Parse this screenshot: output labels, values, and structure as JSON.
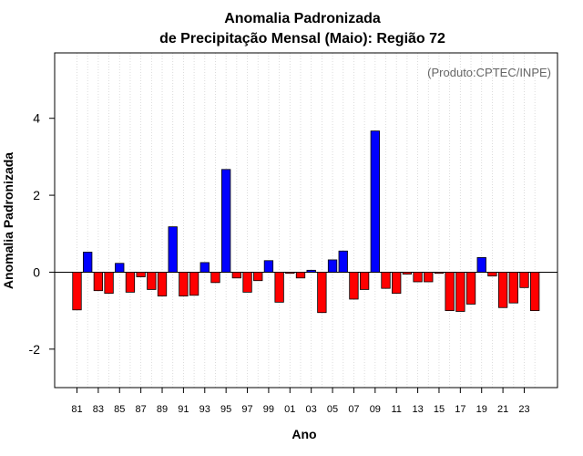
{
  "chart_data": {
    "type": "bar",
    "title": [
      "Anomalia Padronizada",
      "de Precipitação Mensal (Maio): Região 72"
    ],
    "xlabel": "Ano",
    "ylabel": "Anomalia Padronizada",
    "annotation": "(Produto:CPTEC/INPE)",
    "ylim": [
      -3.0,
      5.7
    ],
    "yticks": [
      -2,
      0,
      2,
      4
    ],
    "categories": [
      "81",
      "82",
      "83",
      "84",
      "85",
      "86",
      "87",
      "88",
      "89",
      "90",
      "91",
      "92",
      "93",
      "94",
      "95",
      "96",
      "97",
      "98",
      "99",
      "00",
      "01",
      "02",
      "03",
      "04",
      "05",
      "06",
      "07",
      "08",
      "09",
      "10",
      "11",
      "12",
      "13",
      "14",
      "15",
      "16",
      "17",
      "18",
      "19",
      "20",
      "21",
      "22",
      "23",
      "24"
    ],
    "xtick_labels": [
      "81",
      "83",
      "85",
      "87",
      "89",
      "91",
      "93",
      "95",
      "97",
      "99",
      "01",
      "03",
      "05",
      "07",
      "09",
      "11",
      "13",
      "15",
      "17",
      "19",
      "21",
      "23"
    ],
    "values": [
      -0.98,
      0.52,
      -0.48,
      -0.55,
      0.23,
      -0.52,
      -0.12,
      -0.45,
      -0.62,
      1.18,
      -0.62,
      -0.6,
      0.25,
      -0.27,
      2.67,
      -0.15,
      -0.52,
      -0.22,
      0.3,
      -0.78,
      -0.03,
      -0.15,
      0.05,
      -1.05,
      0.32,
      0.55,
      -0.7,
      -0.45,
      3.67,
      -0.42,
      -0.55,
      -0.05,
      -0.25,
      -0.25,
      -0.03,
      -1.0,
      -1.02,
      -0.83,
      0.38,
      -0.1,
      -0.92,
      -0.8,
      -0.4,
      -1.0
    ],
    "colors": {
      "positive": "#0000ff",
      "negative": "#ff0000",
      "zero_line": "#000000",
      "grid": "#d3d3d3"
    },
    "grid": "vertical dotted"
  }
}
